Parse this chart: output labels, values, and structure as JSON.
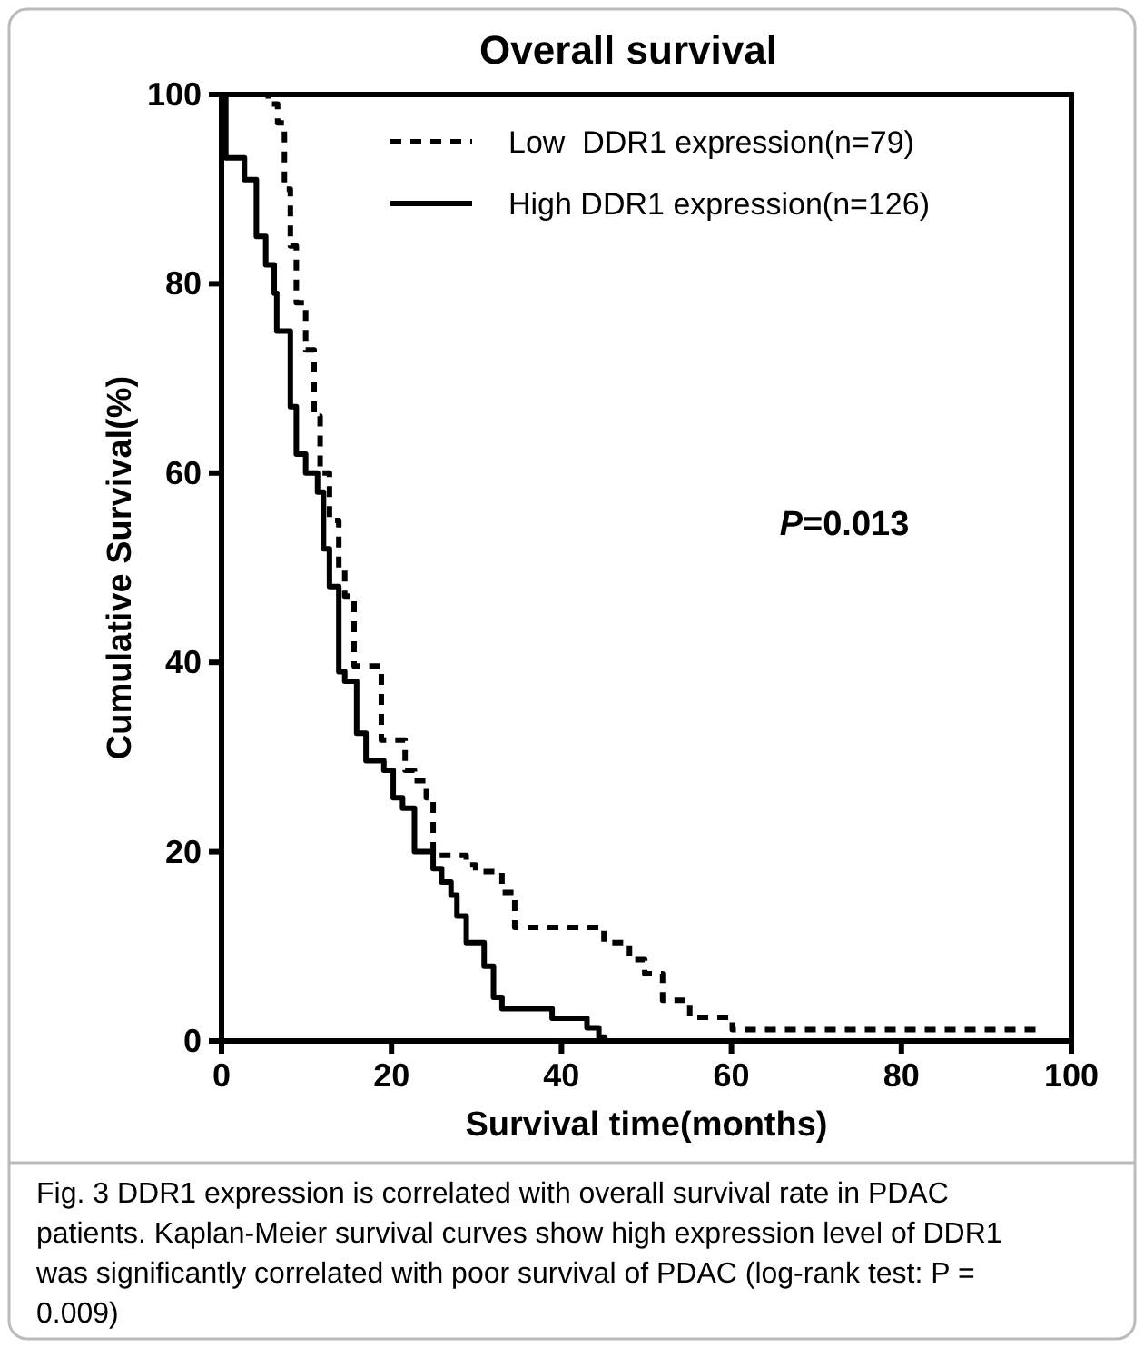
{
  "chart_data": {
    "type": "step",
    "title": "Overall survival",
    "xlabel": "Survival time(months)",
    "ylabel": "Cumulative Survival(%)",
    "xlim": [
      0,
      100
    ],
    "xticks": [
      0,
      20,
      40,
      60,
      80,
      100
    ],
    "ylim": [
      0,
      100
    ],
    "yticks": [
      0,
      20,
      40,
      60,
      80,
      100
    ],
    "grid": false,
    "legend": "top right",
    "series": [
      {
        "name": "Low  DDR1 expression(n=79)",
        "color": "#000000",
        "line_style": "dashed",
        "x": [
          0,
          5.5,
          6.6,
          7.4,
          8.1,
          8.8,
          9.9,
          10.9,
          11.6,
          12.7,
          13.8,
          14.5,
          15.6,
          18.8,
          21.6,
          22.7,
          24.1,
          24.9,
          28.8,
          29.9,
          33,
          34.5,
          45,
          48,
          49.8,
          51.9,
          55.1,
          60.1,
          96.2
        ],
        "values": [
          100,
          99,
          97,
          90,
          84,
          78,
          73,
          66,
          60,
          55,
          50,
          47,
          39.6,
          31.8,
          28.6,
          27.5,
          25.7,
          19.6,
          18.6,
          17.9,
          15.7,
          12,
          10.4,
          8.6,
          7.1,
          4.3,
          2.5,
          1.2,
          1.2
        ]
      },
      {
        "name": "High DDR1 expression(n=126)",
        "color": "#000000",
        "line_style": "solid",
        "x": [
          0,
          0.5,
          2.7,
          4.1,
          5.2,
          6.2,
          6.5,
          8.1,
          8.8,
          9.9,
          11.3,
          12,
          12.7,
          13.8,
          14.5,
          15.9,
          17,
          19.1,
          20.2,
          21.3,
          22.7,
          24.9,
          25.9,
          27,
          27.7,
          28.8,
          30.9,
          32,
          33,
          38.9,
          43,
          44.4,
          45.1
        ],
        "values": [
          100,
          93.3,
          91,
          85,
          82,
          79,
          75,
          67,
          62,
          60,
          58,
          52,
          48,
          39,
          38,
          32.5,
          29.6,
          28.6,
          25.7,
          24.6,
          20,
          18.2,
          16.8,
          15.4,
          13.2,
          10.4,
          7.9,
          4.6,
          3.4,
          2.4,
          1.4,
          0.4,
          0
        ]
      }
    ],
    "annotations": [
      "P=0.013",
      "Fig. 3 DDR1 expression is correlated with overall survival rate in PDAC patients. Kaplan-Meier survival curves show high expression level of DDR1 was significantly correlated with poor survival of PDAC (log-rank test: P = 0.009)"
    ]
  }
}
